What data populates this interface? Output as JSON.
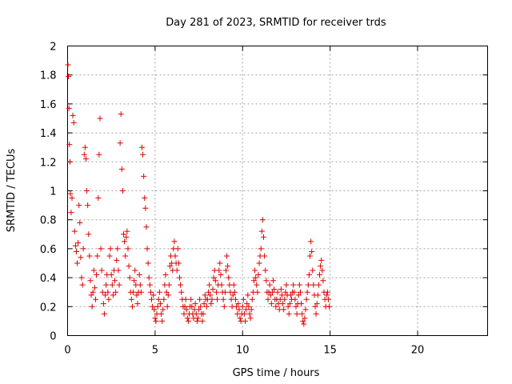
{
  "chart_data": {
    "type": "scatter",
    "title": "Day 281 of 2023, SRMTID for receiver trds",
    "xlabel": "GPS time / hours",
    "ylabel": "SRMTID / TECUs",
    "xlim": [
      0,
      24
    ],
    "ylim": [
      0,
      2
    ],
    "xticks": [
      0,
      5,
      10,
      15,
      20
    ],
    "yticks": [
      0,
      0.2,
      0.4,
      0.6,
      0.8,
      1,
      1.2,
      1.4,
      1.6,
      1.8,
      2
    ],
    "xtick_labels": [
      "0",
      "5",
      "10",
      "15",
      "20"
    ],
    "ytick_labels": [
      "0",
      "0.2",
      "0.4",
      "0.6",
      "0.8",
      "1",
      "1.2",
      "1.4",
      "1.6",
      "1.8",
      "2"
    ],
    "grid": true,
    "marker": "+",
    "color": "#e00000",
    "series": [
      {
        "name": "SRMTID",
        "points": [
          [
            0.02,
            1.87
          ],
          [
            0.05,
            1.79
          ],
          [
            0.08,
            1.57
          ],
          [
            0.1,
            1.32
          ],
          [
            0.13,
            1.2
          ],
          [
            0.16,
            0.98
          ],
          [
            0.2,
            0.85
          ],
          [
            0.25,
            0.95
          ],
          [
            0.3,
            1.52
          ],
          [
            0.35,
            1.47
          ],
          [
            0.4,
            0.72
          ],
          [
            0.45,
            0.62
          ],
          [
            0.5,
            0.58
          ],
          [
            0.55,
            0.5
          ],
          [
            0.6,
            0.64
          ],
          [
            0.65,
            0.9
          ],
          [
            0.7,
            0.78
          ],
          [
            0.75,
            0.54
          ],
          [
            0.8,
            0.4
          ],
          [
            0.85,
            0.35
          ],
          [
            0.9,
            0.6
          ],
          [
            0.95,
            1.25
          ],
          [
            1.0,
            1.3
          ],
          [
            1.05,
            1.22
          ],
          [
            1.1,
            1.0
          ],
          [
            1.15,
            0.9
          ],
          [
            1.2,
            0.7
          ],
          [
            1.25,
            0.55
          ],
          [
            1.3,
            0.38
          ],
          [
            1.35,
            0.28
          ],
          [
            1.4,
            0.2
          ],
          [
            1.45,
            0.3
          ],
          [
            1.5,
            0.45
          ],
          [
            1.55,
            0.33
          ],
          [
            1.6,
            0.25
          ],
          [
            1.65,
            0.42
          ],
          [
            1.7,
            0.55
          ],
          [
            1.75,
            0.95
          ],
          [
            1.8,
            1.25
          ],
          [
            1.85,
            1.5
          ],
          [
            1.9,
            0.6
          ],
          [
            1.95,
            0.45
          ],
          [
            2.0,
            0.3
          ],
          [
            2.05,
            0.22
          ],
          [
            2.1,
            0.15
          ],
          [
            2.15,
            0.28
          ],
          [
            2.2,
            0.35
          ],
          [
            2.25,
            0.42
          ],
          [
            2.3,
            0.3
          ],
          [
            2.35,
            0.25
          ],
          [
            2.4,
            0.55
          ],
          [
            2.45,
            0.6
          ],
          [
            2.5,
            0.42
          ],
          [
            2.55,
            0.35
          ],
          [
            2.6,
            0.28
          ],
          [
            2.65,
            0.45
          ],
          [
            2.7,
            0.38
          ],
          [
            2.75,
            0.3
          ],
          [
            2.8,
            0.52
          ],
          [
            2.85,
            0.6
          ],
          [
            2.9,
            0.45
          ],
          [
            2.95,
            0.35
          ],
          [
            3.0,
            1.33
          ],
          [
            3.05,
            1.53
          ],
          [
            3.1,
            1.15
          ],
          [
            3.15,
            1.0
          ],
          [
            3.2,
            0.7
          ],
          [
            3.25,
            0.65
          ],
          [
            3.3,
            0.55
          ],
          [
            3.35,
            0.68
          ],
          [
            3.4,
            0.72
          ],
          [
            3.45,
            0.6
          ],
          [
            3.5,
            0.48
          ],
          [
            3.55,
            0.4
          ],
          [
            3.6,
            0.3
          ],
          [
            3.65,
            0.25
          ],
          [
            3.7,
            0.2
          ],
          [
            3.75,
            0.3
          ],
          [
            3.8,
            0.38
          ],
          [
            3.85,
            0.45
          ],
          [
            3.9,
            0.35
          ],
          [
            3.95,
            0.28
          ],
          [
            4.0,
            0.22
          ],
          [
            4.05,
            0.3
          ],
          [
            4.1,
            0.42
          ],
          [
            4.15,
            0.35
          ],
          [
            4.2,
            0.3
          ],
          [
            4.25,
            1.3
          ],
          [
            4.3,
            1.25
          ],
          [
            4.35,
            1.1
          ],
          [
            4.4,
            0.95
          ],
          [
            4.45,
            0.88
          ],
          [
            4.5,
            0.75
          ],
          [
            4.55,
            0.6
          ],
          [
            4.6,
            0.5
          ],
          [
            4.65,
            0.4
          ],
          [
            4.7,
            0.35
          ],
          [
            4.75,
            0.3
          ],
          [
            4.8,
            0.25
          ],
          [
            4.85,
            0.2
          ],
          [
            4.9,
            0.28
          ],
          [
            4.95,
            0.18
          ],
          [
            5.0,
            0.12
          ],
          [
            5.05,
            0.1
          ],
          [
            5.1,
            0.15
          ],
          [
            5.15,
            0.2
          ],
          [
            5.2,
            0.25
          ],
          [
            5.25,
            0.3
          ],
          [
            5.3,
            0.22
          ],
          [
            5.35,
            0.15
          ],
          [
            5.4,
            0.1
          ],
          [
            5.45,
            0.18
          ],
          [
            5.5,
            0.25
          ],
          [
            5.55,
            0.35
          ],
          [
            5.6,
            0.42
          ],
          [
            5.65,
            0.3
          ],
          [
            5.7,
            0.2
          ],
          [
            5.75,
            0.28
          ],
          [
            5.8,
            0.35
          ],
          [
            5.85,
            0.48
          ],
          [
            5.9,
            0.55
          ],
          [
            5.95,
            0.5
          ],
          [
            6.0,
            0.45
          ],
          [
            6.05,
            0.6
          ],
          [
            6.1,
            0.65
          ],
          [
            6.15,
            0.55
          ],
          [
            6.2,
            0.5
          ],
          [
            6.25,
            0.45
          ],
          [
            6.3,
            0.6
          ],
          [
            6.35,
            0.5
          ],
          [
            6.4,
            0.4
          ],
          [
            6.45,
            0.35
          ],
          [
            6.5,
            0.3
          ],
          [
            6.55,
            0.25
          ],
          [
            6.6,
            0.2
          ],
          [
            6.65,
            0.15
          ],
          [
            6.7,
            0.2
          ],
          [
            6.75,
            0.25
          ],
          [
            6.8,
            0.18
          ],
          [
            6.85,
            0.12
          ],
          [
            6.9,
            0.1
          ],
          [
            6.95,
            0.15
          ],
          [
            7.0,
            0.2
          ],
          [
            7.05,
            0.25
          ],
          [
            7.1,
            0.2
          ],
          [
            7.15,
            0.15
          ],
          [
            7.2,
            0.12
          ],
          [
            7.25,
            0.18
          ],
          [
            7.3,
            0.22
          ],
          [
            7.35,
            0.15
          ],
          [
            7.4,
            0.1
          ],
          [
            7.45,
            0.12
          ],
          [
            7.5,
            0.18
          ],
          [
            7.55,
            0.25
          ],
          [
            7.6,
            0.2
          ],
          [
            7.65,
            0.15
          ],
          [
            7.7,
            0.1
          ],
          [
            7.75,
            0.15
          ],
          [
            7.8,
            0.22
          ],
          [
            7.85,
            0.28
          ],
          [
            7.9,
            0.25
          ],
          [
            7.95,
            0.2
          ],
          [
            8.0,
            0.25
          ],
          [
            8.05,
            0.3
          ],
          [
            8.1,
            0.35
          ],
          [
            8.15,
            0.28
          ],
          [
            8.2,
            0.22
          ],
          [
            8.25,
            0.25
          ],
          [
            8.3,
            0.32
          ],
          [
            8.35,
            0.4
          ],
          [
            8.4,
            0.45
          ],
          [
            8.45,
            0.38
          ],
          [
            8.5,
            0.3
          ],
          [
            8.55,
            0.25
          ],
          [
            8.6,
            0.35
          ],
          [
            8.65,
            0.45
          ],
          [
            8.7,
            0.5
          ],
          [
            8.75,
            0.42
          ],
          [
            8.8,
            0.35
          ],
          [
            8.85,
            0.3
          ],
          [
            8.9,
            0.25
          ],
          [
            8.95,
            0.2
          ],
          [
            9.0,
            0.3
          ],
          [
            9.05,
            0.45
          ],
          [
            9.1,
            0.55
          ],
          [
            9.15,
            0.48
          ],
          [
            9.2,
            0.4
          ],
          [
            9.25,
            0.35
          ],
          [
            9.3,
            0.3
          ],
          [
            9.35,
            0.25
          ],
          [
            9.4,
            0.2
          ],
          [
            9.45,
            0.28
          ],
          [
            9.5,
            0.35
          ],
          [
            9.55,
            0.3
          ],
          [
            9.6,
            0.25
          ],
          [
            9.65,
            0.2
          ],
          [
            9.7,
            0.15
          ],
          [
            9.75,
            0.22
          ],
          [
            9.8,
            0.18
          ],
          [
            9.85,
            0.12
          ],
          [
            9.9,
            0.1
          ],
          [
            9.95,
            0.15
          ],
          [
            10.0,
            0.2
          ],
          [
            10.05,
            0.25
          ],
          [
            10.1,
            0.15
          ],
          [
            10.15,
            0.1
          ],
          [
            10.2,
            0.18
          ],
          [
            10.25,
            0.22
          ],
          [
            10.3,
            0.28
          ],
          [
            10.35,
            0.2
          ],
          [
            10.4,
            0.15
          ],
          [
            10.45,
            0.12
          ],
          [
            10.5,
            0.18
          ],
          [
            10.55,
            0.25
          ],
          [
            10.6,
            0.3
          ],
          [
            10.65,
            0.38
          ],
          [
            10.7,
            0.45
          ],
          [
            10.75,
            0.4
          ],
          [
            10.8,
            0.35
          ],
          [
            10.85,
            0.3
          ],
          [
            10.9,
            0.42
          ],
          [
            10.95,
            0.5
          ],
          [
            11.0,
            0.55
          ],
          [
            11.05,
            0.6
          ],
          [
            11.1,
            0.72
          ],
          [
            11.15,
            0.8
          ],
          [
            11.2,
            0.68
          ],
          [
            11.25,
            0.55
          ],
          [
            11.3,
            0.45
          ],
          [
            11.35,
            0.38
          ],
          [
            11.4,
            0.3
          ],
          [
            11.45,
            0.25
          ],
          [
            11.5,
            0.3
          ],
          [
            11.55,
            0.35
          ],
          [
            11.6,
            0.28
          ],
          [
            11.65,
            0.22
          ],
          [
            11.7,
            0.3
          ],
          [
            11.75,
            0.38
          ],
          [
            11.8,
            0.32
          ],
          [
            11.85,
            0.25
          ],
          [
            11.9,
            0.2
          ],
          [
            11.95,
            0.25
          ],
          [
            12.0,
            0.3
          ],
          [
            12.05,
            0.22
          ],
          [
            12.1,
            0.18
          ],
          [
            12.15,
            0.25
          ],
          [
            12.2,
            0.32
          ],
          [
            12.25,
            0.28
          ],
          [
            12.3,
            0.22
          ],
          [
            12.35,
            0.18
          ],
          [
            12.4,
            0.25
          ],
          [
            12.45,
            0.3
          ],
          [
            12.5,
            0.35
          ],
          [
            12.55,
            0.28
          ],
          [
            12.6,
            0.2
          ],
          [
            12.65,
            0.15
          ],
          [
            12.7,
            0.22
          ],
          [
            12.75,
            0.28
          ],
          [
            12.8,
            0.25
          ],
          [
            12.85,
            0.3
          ],
          [
            12.9,
            0.35
          ],
          [
            12.95,
            0.3
          ],
          [
            13.0,
            0.25
          ],
          [
            13.05,
            0.2
          ],
          [
            13.1,
            0.15
          ],
          [
            13.15,
            0.22
          ],
          [
            13.2,
            0.28
          ],
          [
            13.25,
            0.35
          ],
          [
            13.3,
            0.3
          ],
          [
            13.35,
            0.22
          ],
          [
            13.4,
            0.15
          ],
          [
            13.45,
            0.1
          ],
          [
            13.5,
            0.08
          ],
          [
            13.55,
            0.12
          ],
          [
            13.6,
            0.18
          ],
          [
            13.65,
            0.25
          ],
          [
            13.7,
            0.3
          ],
          [
            13.75,
            0.35
          ],
          [
            13.8,
            0.42
          ],
          [
            13.85,
            0.55
          ],
          [
            13.9,
            0.65
          ],
          [
            13.95,
            0.58
          ],
          [
            14.0,
            0.45
          ],
          [
            14.05,
            0.35
          ],
          [
            14.1,
            0.28
          ],
          [
            14.15,
            0.2
          ],
          [
            14.2,
            0.15
          ],
          [
            14.25,
            0.22
          ],
          [
            14.3,
            0.28
          ],
          [
            14.35,
            0.35
          ],
          [
            14.4,
            0.42
          ],
          [
            14.45,
            0.48
          ],
          [
            14.5,
            0.52
          ],
          [
            14.55,
            0.45
          ],
          [
            14.6,
            0.38
          ],
          [
            14.65,
            0.3
          ],
          [
            14.7,
            0.25
          ],
          [
            14.75,
            0.2
          ],
          [
            14.8,
            0.28
          ],
          [
            14.85,
            0.3
          ],
          [
            14.9,
            0.25
          ],
          [
            14.95,
            0.2
          ]
        ]
      }
    ]
  }
}
